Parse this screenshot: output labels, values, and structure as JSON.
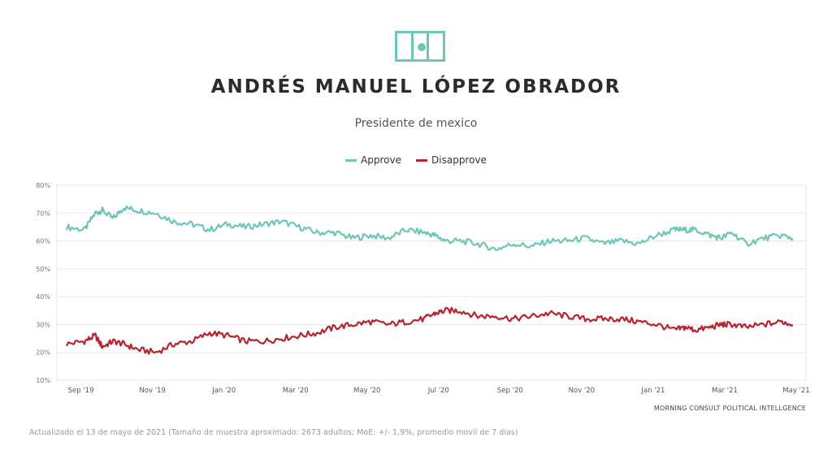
{
  "header": {
    "title": "ANDRÉS MANUEL LÓPEZ OBRADOR",
    "subtitle": "Presidente de mexico"
  },
  "flag_icon": "mexico-flag-icon",
  "colors": {
    "approve": "#6cc7b5",
    "disapprove": "#b5242f",
    "grid": "#e6e6e6"
  },
  "legend": {
    "approve": "Approve",
    "disapprove": "Disapprove"
  },
  "source": "MORNING CONSULT POLITICAL INTELLGENCE",
  "footnote": "Actualizado el 13 de mayo de 2021 (Tamaño de muestra aproximado: 2673 adultos; MoE: +/- 1,9%, promedio movil de 7 dias)",
  "chart_data": {
    "type": "line",
    "title": "ANDRÉS MANUEL LÓPEZ OBRADOR",
    "xlabel": "",
    "ylabel": "",
    "ylim": [
      10,
      80
    ],
    "yticks": [
      "10%",
      "20%",
      "30%",
      "40%",
      "50%",
      "60%",
      "70%",
      "80%"
    ],
    "xticks": [
      "Sep '19",
      "Nov '19",
      "Jan '20",
      "Mar '20",
      "May '20",
      "Jul '20",
      "Sep '20",
      "Nov '20",
      "Jan '21",
      "Mar '21",
      "May '21"
    ],
    "x_range_months": [
      0,
      20.4
    ],
    "tick_months": [
      1,
      3,
      5,
      7,
      9,
      11,
      13,
      15,
      17,
      19,
      21
    ],
    "grid": true,
    "legend_position": "top-center",
    "series": [
      {
        "name": "Approve",
        "x": [
          0,
          0.5,
          0.8,
          1.0,
          1.3,
          1.6,
          2.0,
          2.5,
          3.0,
          3.5,
          4.0,
          4.5,
          5.0,
          5.5,
          6.0,
          6.5,
          7.0,
          7.5,
          8.0,
          8.5,
          9.0,
          9.5,
          10.0,
          10.3,
          10.6,
          11.0,
          11.5,
          12.0,
          12.5,
          13.0,
          13.5,
          14.0,
          14.5,
          15.0,
          15.5,
          16.0,
          16.5,
          17.0,
          17.3,
          17.6,
          18.0,
          18.3,
          18.6,
          19.0,
          19.5,
          20.0,
          20.3
        ],
        "values": [
          65,
          64,
          70,
          71,
          68,
          72,
          71,
          70,
          67,
          66,
          64,
          66,
          65,
          66,
          67,
          65,
          63,
          63,
          61,
          62,
          61,
          64,
          63,
          62,
          60,
          60,
          59,
          57,
          59,
          58,
          60,
          60,
          61,
          59,
          60,
          59,
          62,
          64,
          64,
          64,
          62,
          61,
          63,
          59,
          61,
          62,
          61
        ]
      },
      {
        "name": "Disapprove",
        "x": [
          0,
          0.5,
          0.8,
          1.0,
          1.3,
          1.6,
          2.0,
          2.5,
          3.0,
          3.5,
          4.0,
          4.5,
          5.0,
          5.5,
          6.0,
          6.5,
          7.0,
          7.5,
          8.0,
          8.5,
          9.0,
          9.5,
          10.0,
          10.3,
          10.6,
          11.0,
          11.5,
          12.0,
          12.5,
          13.0,
          13.5,
          14.0,
          14.5,
          15.0,
          15.5,
          16.0,
          16.5,
          17.0,
          17.3,
          17.6,
          18.0,
          18.3,
          18.6,
          19.0,
          19.5,
          20.0,
          20.3
        ],
        "values": [
          23,
          24,
          26,
          22,
          24,
          23,
          21,
          20,
          23,
          24,
          27,
          26,
          24,
          24,
          25,
          26,
          27,
          29,
          30,
          31,
          30,
          31,
          32,
          34,
          35,
          35,
          33,
          33,
          32,
          33,
          34,
          33,
          32,
          32,
          32,
          31,
          30,
          28,
          29,
          28,
          29,
          30,
          30,
          29,
          30,
          31,
          30
        ]
      }
    ]
  }
}
